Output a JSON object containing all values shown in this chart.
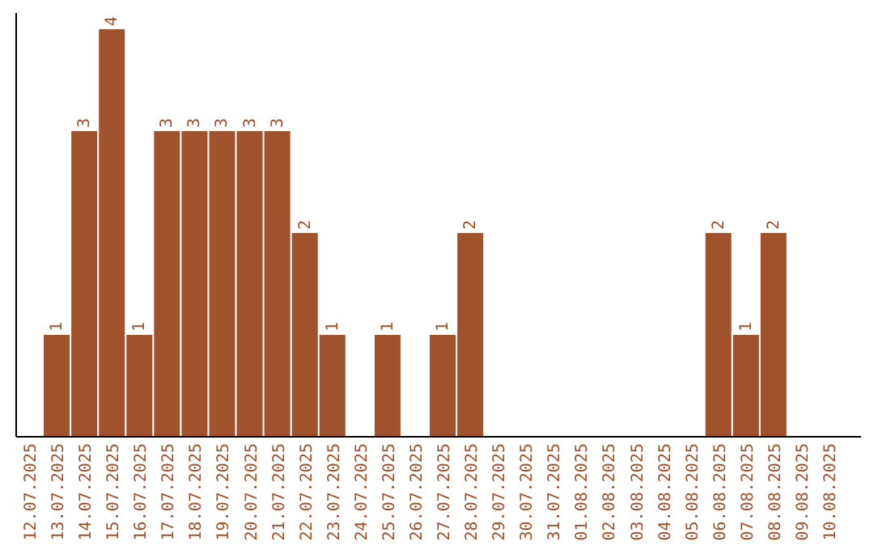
{
  "chart_data": {
    "type": "bar",
    "categories": [
      "12.07.2025",
      "13.07.2025",
      "14.07.2025",
      "15.07.2025",
      "16.07.2025",
      "17.07.2025",
      "18.07.2025",
      "19.07.2025",
      "20.07.2025",
      "21.07.2025",
      "22.07.2025",
      "23.07.2025",
      "24.07.2025",
      "25.07.2025",
      "26.07.2025",
      "27.07.2025",
      "28.07.2025",
      "29.07.2025",
      "30.07.2025",
      "31.07.2025",
      "01.08.2025",
      "02.08.2025",
      "03.08.2025",
      "04.08.2025",
      "05.08.2025",
      "06.08.2025",
      "07.08.2025",
      "08.08.2025",
      "09.08.2025",
      "10.08.2025"
    ],
    "values": [
      0,
      1,
      3,
      4,
      1,
      3,
      3,
      3,
      3,
      3,
      2,
      1,
      0,
      1,
      0,
      1,
      2,
      0,
      0,
      0,
      0,
      0,
      0,
      0,
      0,
      2,
      1,
      2,
      0,
      0
    ],
    "value_labels": [
      null,
      "1",
      "3",
      "4",
      "1",
      "3",
      "3",
      "3",
      "3",
      "3",
      "2",
      "1",
      null,
      "1",
      null,
      "1",
      "2",
      null,
      null,
      null,
      null,
      null,
      null,
      null,
      null,
      "2",
      "1",
      "2",
      null,
      null
    ],
    "color": "#a0522d",
    "tick_labels": "x"
  }
}
